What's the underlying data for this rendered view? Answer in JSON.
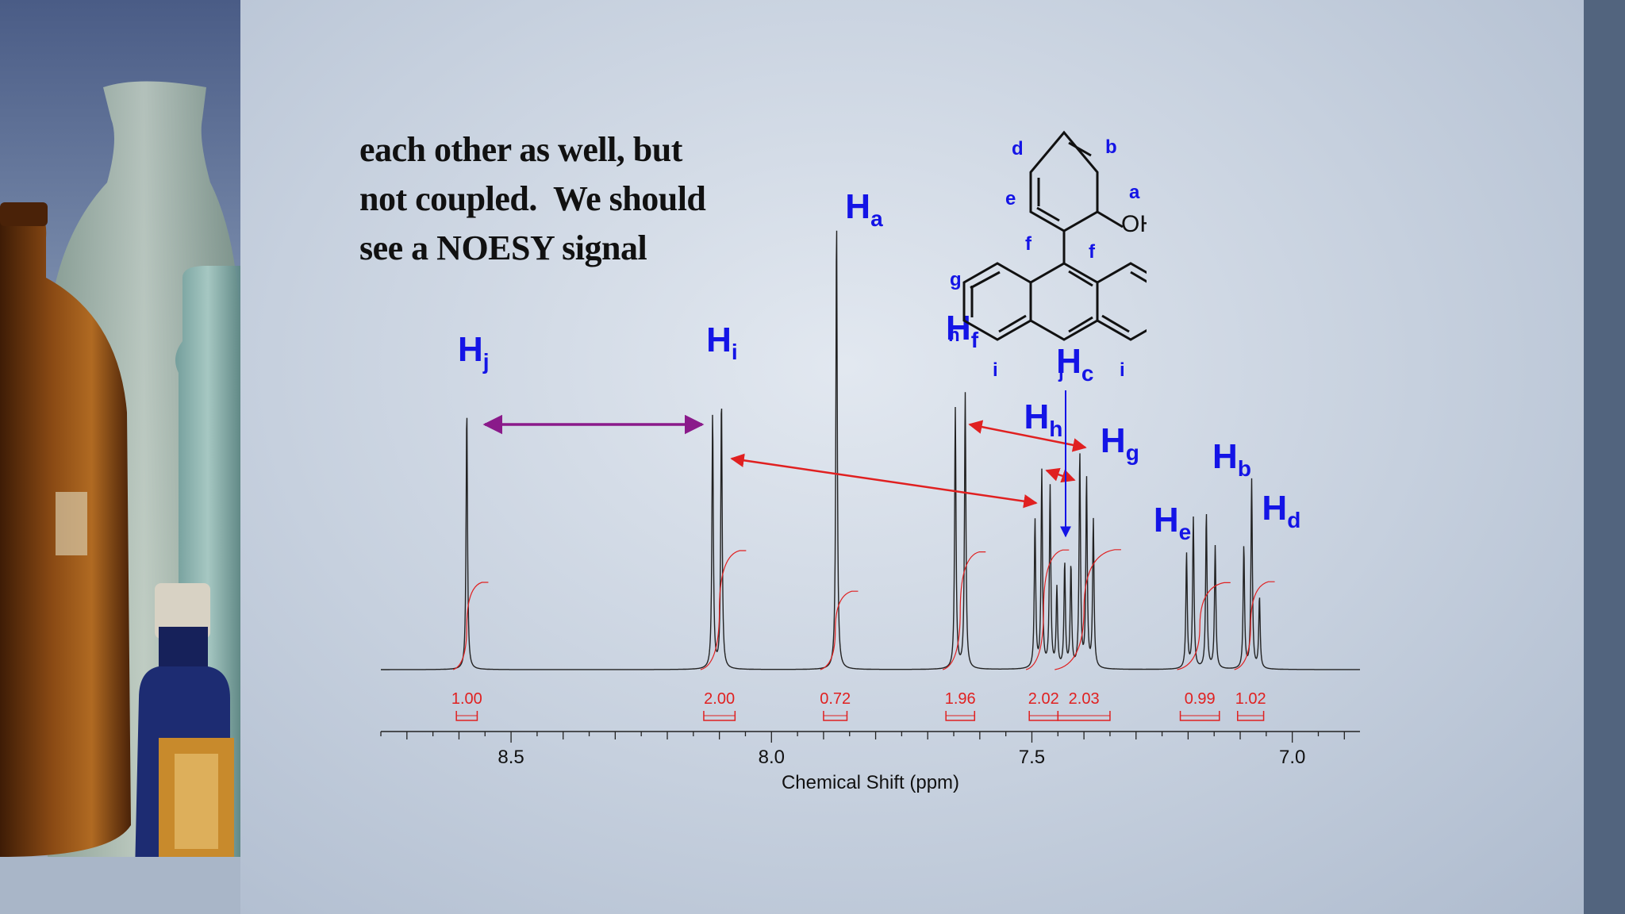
{
  "caption": {
    "lines": [
      "each other as well, but",
      "not coupled.  We should",
      "see a NOESY signal"
    ]
  },
  "colors": {
    "peak_label": "#1414e6",
    "integral": "#e02020",
    "arrow_noe": "#e02020",
    "arrow_hj_hi": "#8a1a8a",
    "arrow_hc": "#1414e6",
    "spectrum_line": "#222222"
  },
  "chart_data": {
    "type": "line",
    "title": "",
    "xlabel": "Chemical Shift (ppm)",
    "ylabel": "",
    "xlim": [
      8.75,
      6.87
    ],
    "x_reversed": true,
    "major_ticks": [
      8.5,
      8.0,
      7.5,
      7.0
    ],
    "tick_labels": [
      "8.5",
      "8.0",
      "7.5",
      "7.0"
    ],
    "minor_tick_step": 0.05,
    "grid": false,
    "peaks": [
      {
        "shift": 8.585,
        "height": 1.02
      },
      {
        "shift": 8.113,
        "height": 1.0
      },
      {
        "shift": 8.096,
        "height": 1.06
      },
      {
        "shift": 7.875,
        "height": 1.76
      },
      {
        "shift": 7.647,
        "height": 1.02
      },
      {
        "shift": 7.628,
        "height": 1.08
      },
      {
        "shift": 7.494,
        "height": 0.58
      },
      {
        "shift": 7.481,
        "height": 0.77
      },
      {
        "shift": 7.465,
        "height": 0.71
      },
      {
        "shift": 7.452,
        "height": 0.31
      },
      {
        "shift": 7.437,
        "height": 0.41
      },
      {
        "shift": 7.425,
        "height": 0.4
      },
      {
        "shift": 7.408,
        "height": 0.84
      },
      {
        "shift": 7.395,
        "height": 0.74
      },
      {
        "shift": 7.382,
        "height": 0.58
      },
      {
        "shift": 7.203,
        "height": 0.45
      },
      {
        "shift": 7.19,
        "height": 0.59
      },
      {
        "shift": 7.165,
        "height": 0.61
      },
      {
        "shift": 7.148,
        "height": 0.48
      },
      {
        "shift": 7.093,
        "height": 0.48
      },
      {
        "shift": 7.078,
        "height": 0.74
      },
      {
        "shift": 7.063,
        "height": 0.28
      }
    ],
    "peak_labels": [
      {
        "letter": "H",
        "sub": "j",
        "shift": 8.59
      },
      {
        "letter": "H",
        "sub": "i",
        "shift": 8.11
      },
      {
        "letter": "H",
        "sub": "a",
        "shift": 7.84
      },
      {
        "letter": "H",
        "sub": "f",
        "shift": 7.65
      },
      {
        "letter": "H",
        "sub": "c",
        "shift": 7.435
      },
      {
        "letter": "H",
        "sub": "h",
        "shift": 7.5
      },
      {
        "letter": "H",
        "sub": "g",
        "shift": 7.35
      },
      {
        "letter": "H",
        "sub": "b",
        "shift": 7.135
      },
      {
        "letter": "H",
        "sub": "e",
        "shift": 7.245
      },
      {
        "letter": "H",
        "sub": "d",
        "shift": 7.04
      }
    ],
    "integrals": [
      {
        "value": "1.00",
        "from": 8.605,
        "to": 8.565
      },
      {
        "value": "2.00",
        "from": 8.13,
        "to": 8.07
      },
      {
        "value": "0.72",
        "from": 7.9,
        "to": 7.855
      },
      {
        "value": "1.96",
        "from": 7.665,
        "to": 7.61
      },
      {
        "value": "2.02",
        "from": 7.505,
        "to": 7.45
      },
      {
        "value": "2.03",
        "from": 7.45,
        "to": 7.35
      },
      {
        "value": "0.99",
        "from": 7.215,
        "to": 7.14
      },
      {
        "value": "1.02",
        "from": 7.105,
        "to": 7.055
      }
    ]
  },
  "molecule": {
    "substituent": "OH",
    "position_labels": [
      "d",
      "b",
      "e",
      "a",
      "f",
      "f",
      "g",
      "g",
      "h",
      "h",
      "i",
      "j",
      "i"
    ]
  }
}
